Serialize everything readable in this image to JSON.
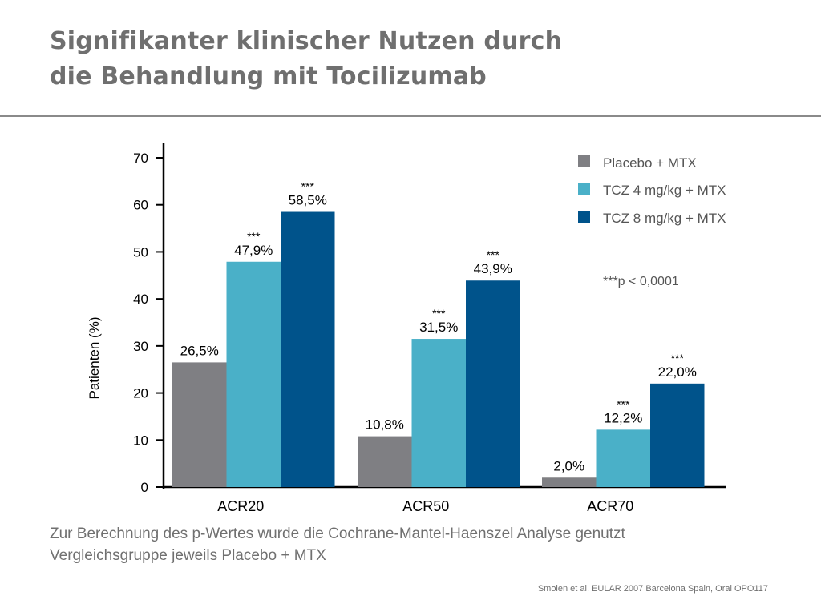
{
  "title": {
    "line1": "Signifikanter klinischer Nutzen durch",
    "line2": "die Behandlung mit Tocilizumab"
  },
  "chart_data": {
    "type": "bar",
    "categories": [
      "ACR20",
      "ACR50",
      "ACR70"
    ],
    "series": [
      {
        "name": "Placebo + MTX",
        "color": "#7f7f83",
        "values": [
          26.5,
          10.8,
          2.0
        ],
        "labels": [
          "26,5%",
          "10,8%",
          "2,0%"
        ],
        "significance": [
          "",
          "",
          ""
        ]
      },
      {
        "name": "TCZ 4 mg/kg + MTX",
        "color": "#4ab0c8",
        "values": [
          47.9,
          31.5,
          12.2
        ],
        "labels": [
          "47,9%",
          "31,5%",
          "12,2%"
        ],
        "significance": [
          "***",
          "***",
          "***"
        ]
      },
      {
        "name": "TCZ 8 mg/kg + MTX",
        "color": "#00538b",
        "values": [
          58.5,
          43.9,
          22.0
        ],
        "labels": [
          "58,5%",
          "43,9%",
          "22,0%"
        ],
        "significance": [
          "***",
          "***",
          "***"
        ]
      }
    ],
    "ylabel": "Patienten (%)",
    "ylim": [
      0,
      70
    ],
    "yticks": [
      0,
      10,
      20,
      30,
      40,
      50,
      60,
      70
    ],
    "legend_position": "top-right",
    "annotation": "***p < 0,0001",
    "grid": false
  },
  "footnotes": {
    "line1": "Zur Berechnung des p-Wertes wurde die Cochrane-Mantel-Haenszel Analyse genutzt",
    "line2": "Vergleichsgruppe jeweils Placebo + MTX"
  },
  "source": "Smolen et al. EULAR 2007 Barcelona Spain, Oral OPO117"
}
